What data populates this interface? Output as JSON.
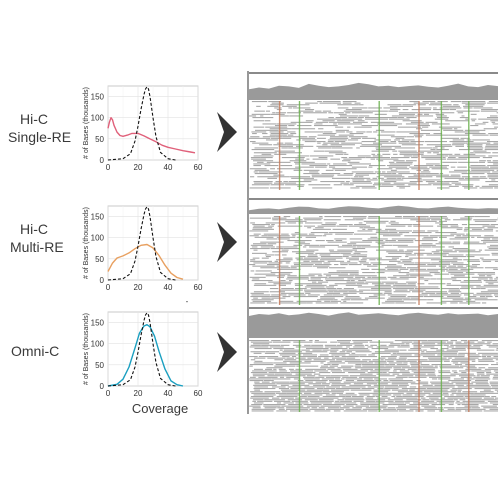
{
  "figure": {
    "x_axis_title": "Coverage",
    "separator_mark": "-"
  },
  "chart_data": [
    {
      "type": "line",
      "row_label_lines": [
        "Hi-C",
        "Single-RE"
      ],
      "ylabel": "# of Bases (thousands)",
      "xlim": [
        0,
        60
      ],
      "ylim": [
        0,
        175
      ],
      "xticks": [
        0,
        20,
        40,
        60
      ],
      "yticks": [
        0,
        50,
        100,
        150
      ],
      "series": [
        {
          "style": "solid",
          "color": "#e0607a",
          "x": [
            0,
            1,
            2,
            3,
            4,
            6,
            8,
            10,
            13,
            16,
            20,
            24,
            28,
            32,
            36,
            40,
            45,
            50,
            55,
            58
          ],
          "y": [
            75,
            90,
            100,
            95,
            82,
            66,
            58,
            56,
            59,
            63,
            63,
            57,
            50,
            43,
            35,
            30,
            26,
            22,
            19,
            17
          ]
        },
        {
          "style": "dashed",
          "color": "#111111",
          "x": [
            0,
            10,
            15,
            18,
            20,
            22,
            24,
            25,
            26,
            27,
            28,
            30,
            32,
            35,
            40,
            45
          ],
          "y": [
            0,
            3,
            15,
            45,
            80,
            120,
            155,
            168,
            173,
            168,
            150,
            100,
            55,
            18,
            3,
            0
          ]
        }
      ]
    },
    {
      "type": "line",
      "row_label_lines": [
        "Hi-C",
        "Multi-RE"
      ],
      "ylabel": "# of Bases (thousands)",
      "xlim": [
        0,
        60
      ],
      "ylim": [
        0,
        175
      ],
      "xticks": [
        0,
        20,
        40,
        60
      ],
      "yticks": [
        0,
        50,
        100,
        150
      ],
      "series": [
        {
          "style": "solid",
          "color": "#e8a060",
          "x": [
            0,
            3,
            6,
            10,
            14,
            18,
            22,
            26,
            30,
            34,
            38,
            42,
            46,
            50
          ],
          "y": [
            20,
            40,
            52,
            57,
            64,
            74,
            82,
            84,
            76,
            58,
            35,
            16,
            6,
            2
          ]
        },
        {
          "style": "dashed",
          "color": "#111111",
          "x": [
            0,
            10,
            15,
            18,
            20,
            22,
            24,
            25,
            26,
            27,
            28,
            30,
            32,
            35,
            40,
            45
          ],
          "y": [
            0,
            3,
            15,
            45,
            80,
            120,
            155,
            168,
            173,
            168,
            150,
            100,
            55,
            18,
            3,
            0
          ]
        }
      ]
    },
    {
      "type": "line",
      "row_label_lines": [
        "Omni-C"
      ],
      "ylabel": "# of Bases (thousands)",
      "xlim": [
        0,
        60
      ],
      "ylim": [
        0,
        175
      ],
      "xticks": [
        0,
        20,
        40,
        60
      ],
      "yticks": [
        0,
        50,
        100,
        150
      ],
      "series": [
        {
          "style": "solid",
          "color": "#1a9fc0",
          "x": [
            0,
            6,
            10,
            14,
            18,
            21,
            24,
            26,
            28,
            31,
            34,
            38,
            42,
            46,
            50
          ],
          "y": [
            0,
            4,
            16,
            45,
            90,
            125,
            142,
            145,
            140,
            118,
            82,
            40,
            12,
            3,
            0
          ]
        },
        {
          "style": "dashed",
          "color": "#111111",
          "x": [
            0,
            10,
            15,
            18,
            20,
            22,
            24,
            25,
            26,
            27,
            28,
            30,
            32,
            35,
            40,
            45
          ],
          "y": [
            0,
            3,
            15,
            45,
            80,
            120,
            155,
            168,
            173,
            168,
            150,
            100,
            55,
            18,
            3,
            0
          ]
        }
      ]
    }
  ],
  "browser_tracks": [
    {
      "coverage": [
        30,
        35,
        32,
        40,
        38,
        34,
        45,
        40,
        36,
        38,
        42,
        48,
        44,
        38,
        40,
        36,
        39,
        41,
        37,
        35,
        40,
        46,
        38,
        36,
        42,
        39
      ],
      "density": 0.55,
      "colored_columns": [
        {
          "pos": 0.12,
          "color": "#c47a5a"
        },
        {
          "pos": 0.2,
          "color": "#6ab04c"
        },
        {
          "pos": 0.52,
          "color": "#6ab04c"
        },
        {
          "pos": 0.68,
          "color": "#c47a5a"
        },
        {
          "pos": 0.77,
          "color": "#6ab04c"
        },
        {
          "pos": 0.88,
          "color": "#6ab04c"
        }
      ]
    },
    {
      "coverage": [
        20,
        28,
        30,
        26,
        34,
        40,
        38,
        30,
        28,
        36,
        42,
        40,
        34,
        30,
        38,
        44,
        40,
        32,
        30,
        36,
        40,
        34,
        30,
        28,
        32,
        30
      ],
      "density": 0.6,
      "colored_columns": [
        {
          "pos": 0.12,
          "color": "#c47a5a"
        },
        {
          "pos": 0.2,
          "color": "#6ab04c"
        },
        {
          "pos": 0.52,
          "color": "#6ab04c"
        },
        {
          "pos": 0.68,
          "color": "#c47a5a"
        },
        {
          "pos": 0.77,
          "color": "#6ab04c"
        },
        {
          "pos": 0.88,
          "color": "#6ab04c"
        }
      ]
    },
    {
      "coverage": [
        55,
        60,
        58,
        62,
        57,
        59,
        63,
        60,
        56,
        61,
        64,
        58,
        60,
        62,
        59,
        57,
        61,
        63,
        60,
        58,
        62,
        59,
        60,
        61,
        57,
        60
      ],
      "density": 0.85,
      "colored_columns": [
        {
          "pos": 0.2,
          "color": "#6ab04c"
        },
        {
          "pos": 0.52,
          "color": "#6ab04c"
        },
        {
          "pos": 0.68,
          "color": "#c47a5a"
        },
        {
          "pos": 0.77,
          "color": "#6ab04c"
        },
        {
          "pos": 0.88,
          "color": "#c47a5a"
        }
      ]
    }
  ]
}
